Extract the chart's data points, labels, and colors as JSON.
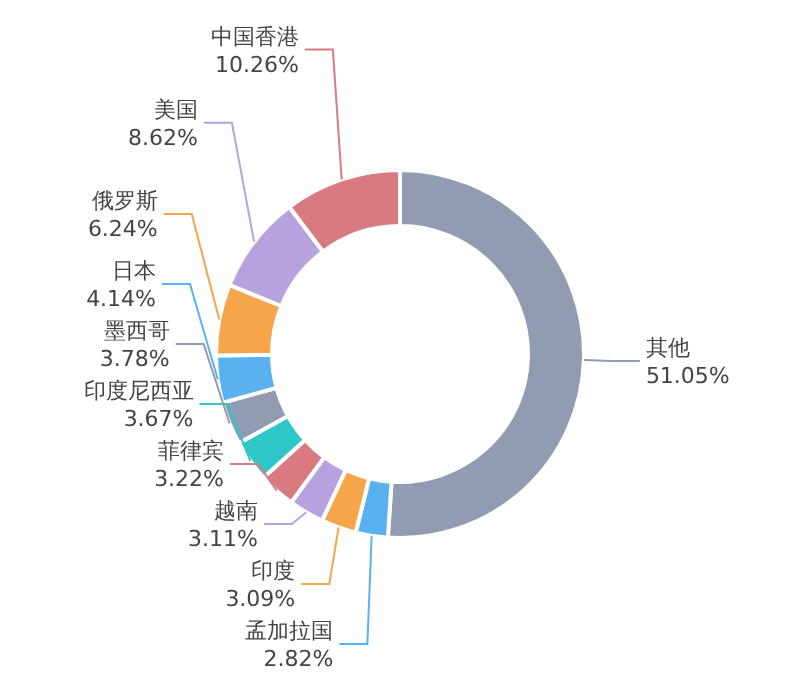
{
  "chart_data": {
    "type": "donut",
    "categories": [
      "其他",
      "孟加拉国",
      "印度",
      "越南",
      "菲律宾",
      "印度尼西亚",
      "墨西哥",
      "日本",
      "俄罗斯",
      "美国",
      "中国香港"
    ],
    "values": [
      51.05,
      2.82,
      3.09,
      3.11,
      3.22,
      3.67,
      3.78,
      4.14,
      6.24,
      8.62,
      10.26
    ],
    "value_labels": [
      "51.05%",
      "2.82%",
      "3.09%",
      "3.11%",
      "3.22%",
      "3.67%",
      "3.78%",
      "4.14%",
      "6.24%",
      "8.62%",
      "10.26%"
    ],
    "colors": [
      "#919cb3",
      "#5ab1ef",
      "#f7a54b",
      "#b6a2de",
      "#d87a80",
      "#2ec7c9",
      "#919cb3",
      "#5ab1ef",
      "#f7a54b",
      "#b6a2de",
      "#d87a80"
    ],
    "legend": false
  }
}
